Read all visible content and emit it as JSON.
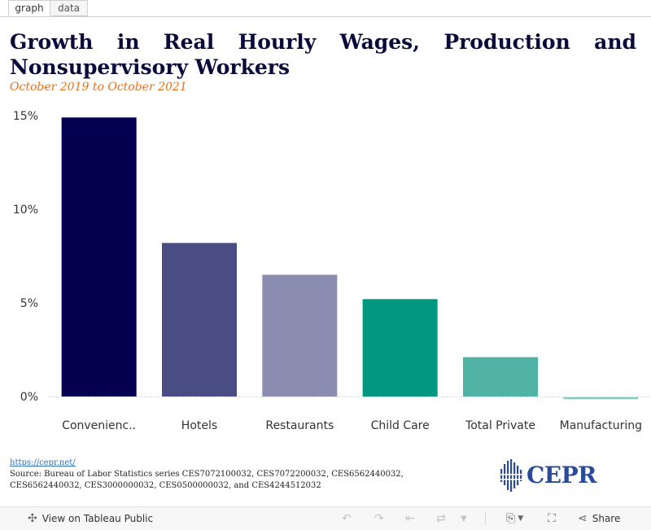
{
  "tabs": [
    {
      "label": "graph"
    },
    {
      "label": "data"
    }
  ],
  "title": "Growth in Real Hourly Wages, Production and Nonsupervisory Workers",
  "subtitle": "October 2019 to October 2021",
  "chart_data": {
    "type": "bar",
    "categories": [
      "Convenienc..",
      "Hotels",
      "Restaurants",
      "Child Care",
      "Total Private",
      "Manufacturing"
    ],
    "values": [
      14.9,
      8.2,
      6.5,
      5.2,
      2.1,
      -0.1
    ],
    "colors": [
      "#04004f",
      "#4a4c84",
      "#8a8daf",
      "#00967f",
      "#4fb2a3",
      "#7fcdc1"
    ],
    "yticks": [
      "15%",
      "10%",
      "5%",
      "0%"
    ],
    "ytick_values": [
      15,
      10,
      5,
      0
    ],
    "ylim": [
      -1,
      15
    ],
    "xlabel": "",
    "ylabel": ""
  },
  "footer": {
    "link": "https://cepr.net/",
    "source": "Source: Bureau of Labor Statistics series CES7072100032, CES7072200032, CES6562440032, CES6562440032, CES3000000032, CES0500000032, and CES4244512032"
  },
  "logo": {
    "text": "CEPR",
    "color": "#2a4a9a"
  },
  "toolbar": {
    "view_label": "View on Tableau Public",
    "share_label": "Share",
    "icons": [
      "tableau-icon",
      "undo-icon",
      "redo-icon",
      "revert-icon",
      "refresh-icon",
      "pause-icon",
      "download-icon",
      "fullscreen-icon",
      "share-icon"
    ]
  }
}
